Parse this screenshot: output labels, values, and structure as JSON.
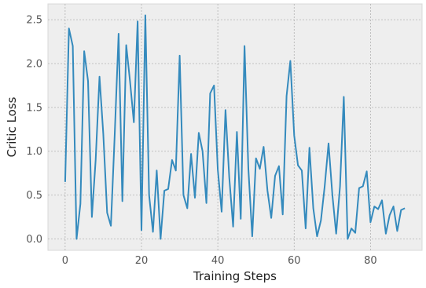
{
  "chart_data": {
    "type": "line",
    "title": "",
    "xlabel": "Training Steps",
    "ylabel": "Critic Loss",
    "xlim": [
      -4.5,
      93.5
    ],
    "ylim": [
      -0.13,
      2.68
    ],
    "xticks": [
      0,
      20,
      40,
      60,
      80
    ],
    "yticks": [
      0.0,
      0.5,
      1.0,
      1.5,
      2.0,
      2.5
    ],
    "xtick_labels": [
      "0",
      "20",
      "40",
      "60",
      "80"
    ],
    "ytick_labels": [
      "0.0",
      "0.5",
      "1.0",
      "1.5",
      "2.0",
      "2.5"
    ],
    "grid": true,
    "legend": "none",
    "colors": {
      "line": "#348abd",
      "plot_bg": "#eeeeee",
      "grid": "#b2b2b2",
      "frame": "#d8d8d8"
    },
    "series": [
      {
        "x": [
          0,
          1,
          2,
          3,
          4,
          5,
          6,
          7,
          8,
          9,
          10,
          11,
          12,
          13,
          14,
          15,
          16,
          17,
          18,
          19,
          20,
          21,
          22,
          23,
          24,
          25,
          26,
          27,
          28,
          29,
          30,
          31,
          32,
          33,
          34,
          35,
          36,
          37,
          38,
          39,
          40,
          41,
          42,
          43,
          44,
          45,
          46,
          47,
          48,
          49,
          50,
          51,
          52,
          53,
          54,
          55,
          56,
          57,
          58,
          59,
          60,
          61,
          62,
          63,
          64,
          65,
          66,
          67,
          68,
          69,
          70,
          71,
          72,
          73,
          74,
          75,
          76,
          77,
          78,
          79,
          80,
          81,
          82,
          83,
          84,
          85,
          86,
          87,
          88,
          89
        ],
        "values": [
          0.65,
          2.4,
          2.2,
          0.0,
          0.4,
          2.14,
          1.8,
          0.25,
          0.9,
          1.85,
          1.2,
          0.3,
          0.15,
          1.2,
          2.34,
          0.43,
          2.21,
          1.8,
          1.33,
          2.48,
          0.1,
          2.55,
          0.5,
          0.08,
          0.78,
          0.0,
          0.55,
          0.57,
          0.9,
          0.78,
          2.09,
          0.5,
          0.35,
          0.97,
          0.47,
          1.21,
          1.0,
          0.41,
          1.66,
          1.75,
          0.79,
          0.31,
          1.47,
          0.7,
          0.14,
          1.22,
          0.23,
          2.2,
          0.8,
          0.03,
          0.92,
          0.8,
          1.05,
          0.55,
          0.24,
          0.72,
          0.83,
          0.28,
          1.63,
          2.03,
          1.18,
          0.84,
          0.78,
          0.12,
          1.04,
          0.35,
          0.03,
          0.21,
          0.6,
          1.09,
          0.5,
          0.06,
          0.6,
          1.62,
          0.0,
          0.12,
          0.07,
          0.58,
          0.6,
          0.77,
          0.19,
          0.37,
          0.34,
          0.44,
          0.06,
          0.27,
          0.37,
          0.09,
          0.33,
          0.35
        ]
      }
    ]
  }
}
